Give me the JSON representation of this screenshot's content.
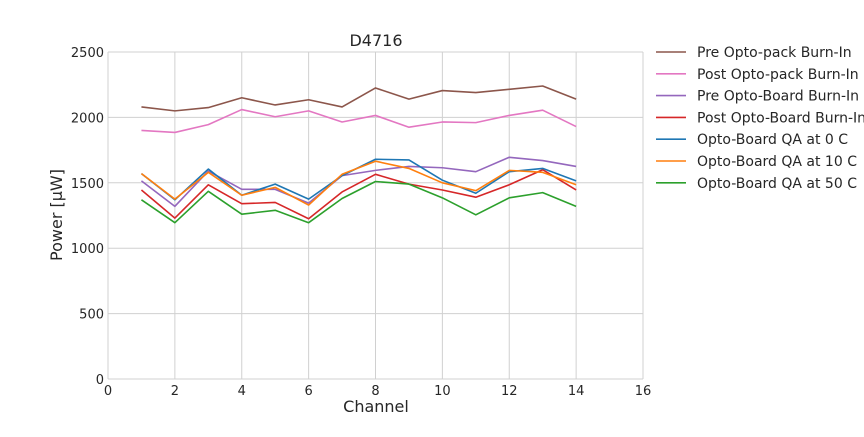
{
  "chart_data": {
    "type": "line",
    "title": "D4716",
    "xlabel": "Channel",
    "ylabel": "Power [μW]",
    "xlim": [
      0,
      16
    ],
    "ylim": [
      0,
      2500
    ],
    "xticks": [
      0,
      2,
      4,
      6,
      8,
      10,
      12,
      14,
      16
    ],
    "yticks": [
      0,
      500,
      1000,
      1500,
      2000,
      2500
    ],
    "grid": true,
    "legend_position": "outside-right-top",
    "x": [
      1,
      2,
      3,
      4,
      5,
      6,
      7,
      8,
      9,
      10,
      11,
      12,
      13,
      14
    ],
    "series": [
      {
        "name": "Pre Opto-pack Burn-In",
        "color": "#8c564b",
        "values": [
          2080,
          2050,
          2075,
          2150,
          2095,
          2135,
          2080,
          2225,
          2140,
          2205,
          2190,
          2215,
          2240,
          2140
        ]
      },
      {
        "name": "Post Opto-pack Burn-In",
        "color": "#e377c2",
        "values": [
          1900,
          1885,
          1945,
          2060,
          2005,
          2050,
          1965,
          2015,
          1925,
          1965,
          1960,
          2015,
          2055,
          1930
        ]
      },
      {
        "name": "Pre Opto-Board Burn-In",
        "color": "#9467bd",
        "values": [
          1515,
          1320,
          1590,
          1450,
          1450,
          1345,
          1555,
          1595,
          1625,
          1615,
          1585,
          1695,
          1670,
          1625
        ]
      },
      {
        "name": "Post Opto-Board Burn-In",
        "color": "#d62728",
        "values": [
          1445,
          1230,
          1485,
          1340,
          1350,
          1225,
          1430,
          1565,
          1490,
          1445,
          1390,
          1485,
          1600,
          1445
        ]
      },
      {
        "name": "Opto-Board QA at 0 C",
        "color": "#1f77b4",
        "values": [
          1570,
          1370,
          1605,
          1405,
          1490,
          1375,
          1555,
          1680,
          1675,
          1520,
          1420,
          1585,
          1610,
          1515
        ]
      },
      {
        "name": "Opto-Board QA at 10 C",
        "color": "#ff7f0e",
        "values": [
          1570,
          1375,
          1580,
          1405,
          1465,
          1330,
          1565,
          1665,
          1610,
          1500,
          1440,
          1595,
          1580,
          1485
        ]
      },
      {
        "name": "Opto-Board QA at 50 C",
        "color": "#2ca02c",
        "values": [
          1370,
          1195,
          1435,
          1260,
          1290,
          1195,
          1380,
          1510,
          1490,
          1385,
          1255,
          1385,
          1425,
          1320
        ]
      }
    ]
  }
}
